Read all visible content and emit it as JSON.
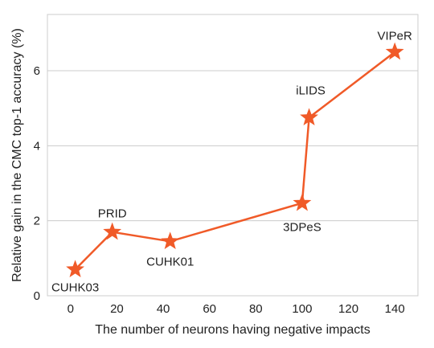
{
  "chart_data": {
    "type": "line",
    "title": "",
    "xlabel": "The number of neurons having negative impacts",
    "ylabel": "Relative gain in the CMC top-1 accuracy (%)",
    "xlim": [
      -10,
      150
    ],
    "ylim": [
      0,
      7.5
    ],
    "xticks": [
      "0",
      "20",
      "40",
      "60",
      "80",
      "100",
      "120",
      "140"
    ],
    "yticks": [
      "0",
      "2",
      "4",
      "6"
    ],
    "grid": "horizontal",
    "marker": "star",
    "color": "#f05a28",
    "frame_color": "#cccccc",
    "grid_color": "#cccccc",
    "points": [
      {
        "label": "CUHK03",
        "x": 2,
        "y": 0.7
      },
      {
        "label": "PRID",
        "x": 18,
        "y": 1.7
      },
      {
        "label": "CUHK01",
        "x": 43,
        "y": 1.45
      },
      {
        "label": "3DPeS",
        "x": 100,
        "y": 2.47
      },
      {
        "label": "iLIDS",
        "x": 103,
        "y": 4.75
      },
      {
        "label": "VIPeR",
        "x": 140,
        "y": 6.5
      }
    ]
  }
}
